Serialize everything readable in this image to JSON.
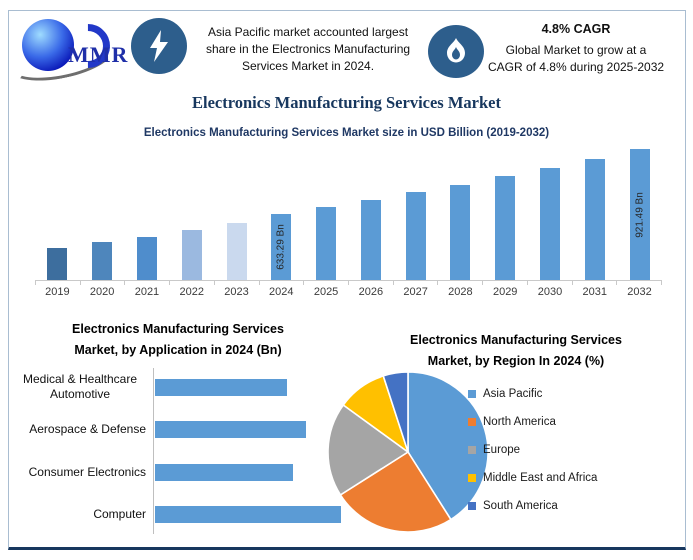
{
  "brand": {
    "logo_text": "MMR"
  },
  "header": {
    "highlight_asia": {
      "icon": "lightning-icon",
      "lines": [
        "Asia Pacific market accounted largest",
        "share in the Electronics Manufacturing",
        "Services Market in 2024."
      ]
    },
    "highlight_cagr": {
      "icon": "flame-icon",
      "title": "4.8% CAGR",
      "lines": [
        "Global Market to grow at a",
        "CAGR of 4.8% during 2025-2032"
      ]
    }
  },
  "main_title": "Electronics Manufacturing Services Market",
  "colors": {
    "accent_blue": "#5B9BD5",
    "badge_navy": "#2D5E8C",
    "title_navy": "#17375E",
    "frame_border": "#A9BDD1"
  },
  "chart_data": [
    {
      "type": "bar",
      "title": "Electronics Manufacturing Services Market size in USD Billion (2019-2032)",
      "categories": [
        "2019",
        "2020",
        "2021",
        "2022",
        "2023",
        "2024",
        "2025",
        "2026",
        "2027",
        "2028",
        "2029",
        "2030",
        "2031",
        "2032"
      ],
      "values": [
        484,
        507,
        533,
        562,
        592,
        633.29,
        664,
        696,
        729,
        764,
        801,
        839,
        879,
        921.49
      ],
      "data_labels": {
        "2024": "633.29 Bn",
        "2032": "921.49 Bn"
      },
      "xlabel": "",
      "ylabel": "USD Billion",
      "ylim": [
        340,
        940
      ],
      "grid": false,
      "default_bar_color": "#5B9BD5",
      "bar_color_overrides": {
        "2019": "#3D6E9E",
        "2020": "#4E86BC",
        "2021": "#4F8DCC",
        "2022": "#9BB9E0",
        "2023": "#CAD9EE"
      },
      "note": "Only 2024 and 2032 bars carry data labels in the figure; other values estimated from bar heights (axis truncated, no gridlines)."
    },
    {
      "type": "bar",
      "orientation": "horizontal",
      "title_lines": [
        "Electronics Manufacturing Services",
        "Market, by Application in 2024 (Bn)"
      ],
      "categories": [
        "Medical & Healthcare Automotive",
        "Aerospace & Defense",
        "Consumer Electronics",
        "Computer"
      ],
      "values": [
        71,
        81,
        74,
        100
      ],
      "value_unit": "relative bar length, % of longest bar (no axis values shown in figure)",
      "xlim": [
        0,
        100
      ],
      "bar_color": "#5B9BD5"
    },
    {
      "type": "pie",
      "title_lines": [
        "Electronics Manufacturing Services",
        "Market, by Region In 2024 (%)"
      ],
      "start_angle_deg_from_top_clockwise": 0,
      "slices": [
        {
          "label": "Asia Pacific",
          "value": 41,
          "color": "#5B9BD5"
        },
        {
          "label": "North America",
          "value": 25,
          "color": "#ED7D31"
        },
        {
          "label": "Europe",
          "value": 19,
          "color": "#A5A5A5"
        },
        {
          "label": "Middle East and Africa",
          "value": 10,
          "color": "#FFC000"
        },
        {
          "label": "South America",
          "value": 5,
          "color": "#4472C4"
        }
      ],
      "legend_position": "right"
    }
  ]
}
